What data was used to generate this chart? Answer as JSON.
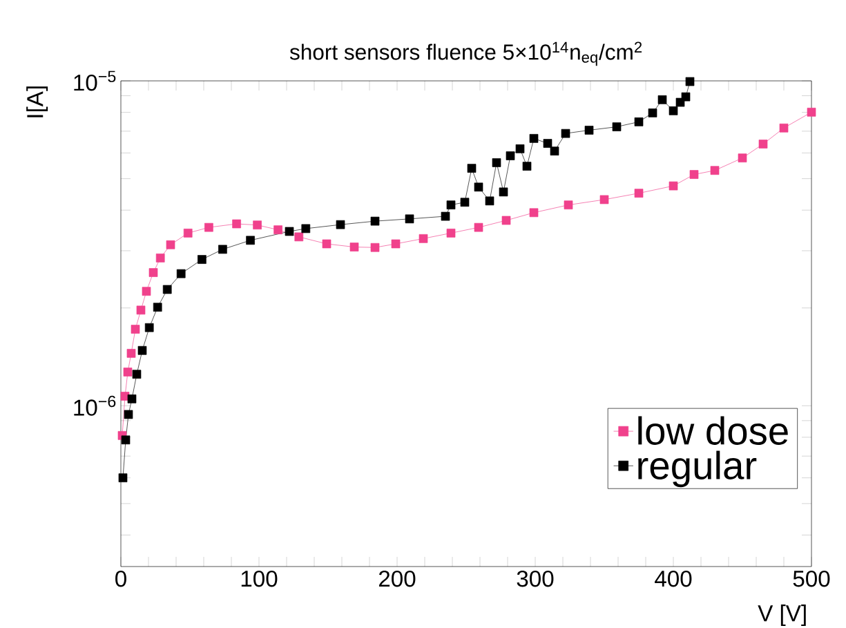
{
  "chart_data": {
    "type": "line",
    "title": "short sensors fluence 5×10$^{14}$n$_{eq}$/cm$^{2}$",
    "xlabel": "V [V]",
    "ylabel": "I[A]",
    "xlim": [
      0,
      500
    ],
    "ylim": [
      3.2e-07,
      1e-05
    ],
    "log": "y",
    "legend": "bottom right",
    "marker": "square",
    "line_style": "solid",
    "xticks": [
      0,
      {
        "value": 20,
        "label": null
      },
      {
        "value": 40,
        "label": null
      },
      {
        "value": 60,
        "label": null
      },
      {
        "value": 80,
        "label": null
      },
      100,
      {
        "value": 120,
        "label": null
      },
      {
        "value": 140,
        "label": null
      },
      {
        "value": 160,
        "label": null
      },
      {
        "value": 180,
        "label": null
      },
      200,
      {
        "value": 220,
        "label": null
      },
      {
        "value": 240,
        "label": null
      },
      {
        "value": 260,
        "label": null
      },
      {
        "value": 280,
        "label": null
      },
      300,
      {
        "value": 320,
        "label": null
      },
      {
        "value": 340,
        "label": null
      },
      {
        "value": 360,
        "label": null
      },
      {
        "value": 380,
        "label": null
      },
      400,
      {
        "value": 420,
        "label": null
      },
      {
        "value": 440,
        "label": null
      },
      {
        "value": 460,
        "label": null
      },
      {
        "value": 480,
        "label": null
      },
      500
    ],
    "yticks": [
      {
        "value": 4e-07,
        "label": null
      },
      {
        "value": 5e-07,
        "label": null
      },
      {
        "value": 6e-07,
        "label": null
      },
      {
        "value": 7e-07,
        "label": null
      },
      {
        "value": 8e-07,
        "label": null
      },
      {
        "value": 9e-07,
        "label": null
      },
      {
        "value": 1e-06,
        "label": "10$^{−6}$"
      },
      {
        "value": 2e-06,
        "label": null
      },
      {
        "value": 3e-06,
        "label": null
      },
      {
        "value": 4e-06,
        "label": null
      },
      {
        "value": 5e-06,
        "label": null
      },
      {
        "value": 6e-06,
        "label": null
      },
      {
        "value": 7e-06,
        "label": null
      },
      {
        "value": 8e-06,
        "label": null
      },
      {
        "value": 9e-06,
        "label": null
      },
      {
        "value": 1e-05,
        "label": "10$^{−5}$"
      }
    ],
    "series": [
      {
        "name": "low dose",
        "color": "#f0418c",
        "x": [
          1,
          3,
          5,
          7.5,
          10.5,
          14.5,
          18.5,
          23.5,
          28.6,
          36,
          48.6,
          63.7,
          83.8,
          98.8,
          113.8,
          128.9,
          149,
          169,
          184,
          199,
          219,
          239,
          259,
          279,
          299,
          324,
          350,
          375,
          400,
          415,
          430,
          450,
          465,
          480,
          500
        ],
        "values": [
          8.1e-07,
          1.07e-06,
          1.27e-06,
          1.45e-06,
          1.72e-06,
          1.97e-06,
          2.25e-06,
          2.57e-06,
          2.85e-06,
          3.13e-06,
          3.4e-06,
          3.54e-06,
          3.63e-06,
          3.6e-06,
          3.48e-06,
          3.31e-06,
          3.15e-06,
          3.08e-06,
          3.07e-06,
          3.15e-06,
          3.27e-06,
          3.4e-06,
          3.54e-06,
          3.72e-06,
          3.93e-06,
          4.15e-06,
          4.31e-06,
          4.51e-06,
          4.75e-06,
          5.15e-06,
          5.3e-06,
          5.79e-06,
          6.39e-06,
          7.16e-06,
          8.01e-06
        ]
      },
      {
        "name": "regular",
        "color": "#000000",
        "x": [
          1.5,
          3.5,
          5.5,
          8,
          11.5,
          15.5,
          20.6,
          26.6,
          33.6,
          43.6,
          58.7,
          73.7,
          93.8,
          122,
          133.9,
          159,
          184,
          209,
          235,
          239,
          249,
          254,
          259,
          267,
          272,
          277,
          282,
          289,
          294,
          299,
          309,
          314,
          322,
          339,
          359,
          375,
          385,
          392,
          400,
          405,
          409,
          412
        ],
        "values": [
          6e-07,
          7.85e-07,
          9.4e-07,
          1.05e-06,
          1.25e-06,
          1.48e-06,
          1.74e-06,
          2.01e-06,
          2.28e-06,
          2.55e-06,
          2.82e-06,
          3.03e-06,
          3.23e-06,
          3.44e-06,
          3.51e-06,
          3.61e-06,
          3.7e-06,
          3.76e-06,
          3.83e-06,
          4.15e-06,
          4.23e-06,
          5.38e-06,
          4.71e-06,
          4.27e-06,
          5.6e-06,
          4.55e-06,
          5.88e-06,
          6.18e-06,
          5.46e-06,
          6.65e-06,
          6.42e-06,
          6.08e-06,
          6.89e-06,
          7.05e-06,
          7.22e-06,
          7.48e-06,
          7.97e-06,
          8.75e-06,
          8.09e-06,
          8.59e-06,
          8.93e-06,
          9.95e-06
        ]
      }
    ]
  }
}
